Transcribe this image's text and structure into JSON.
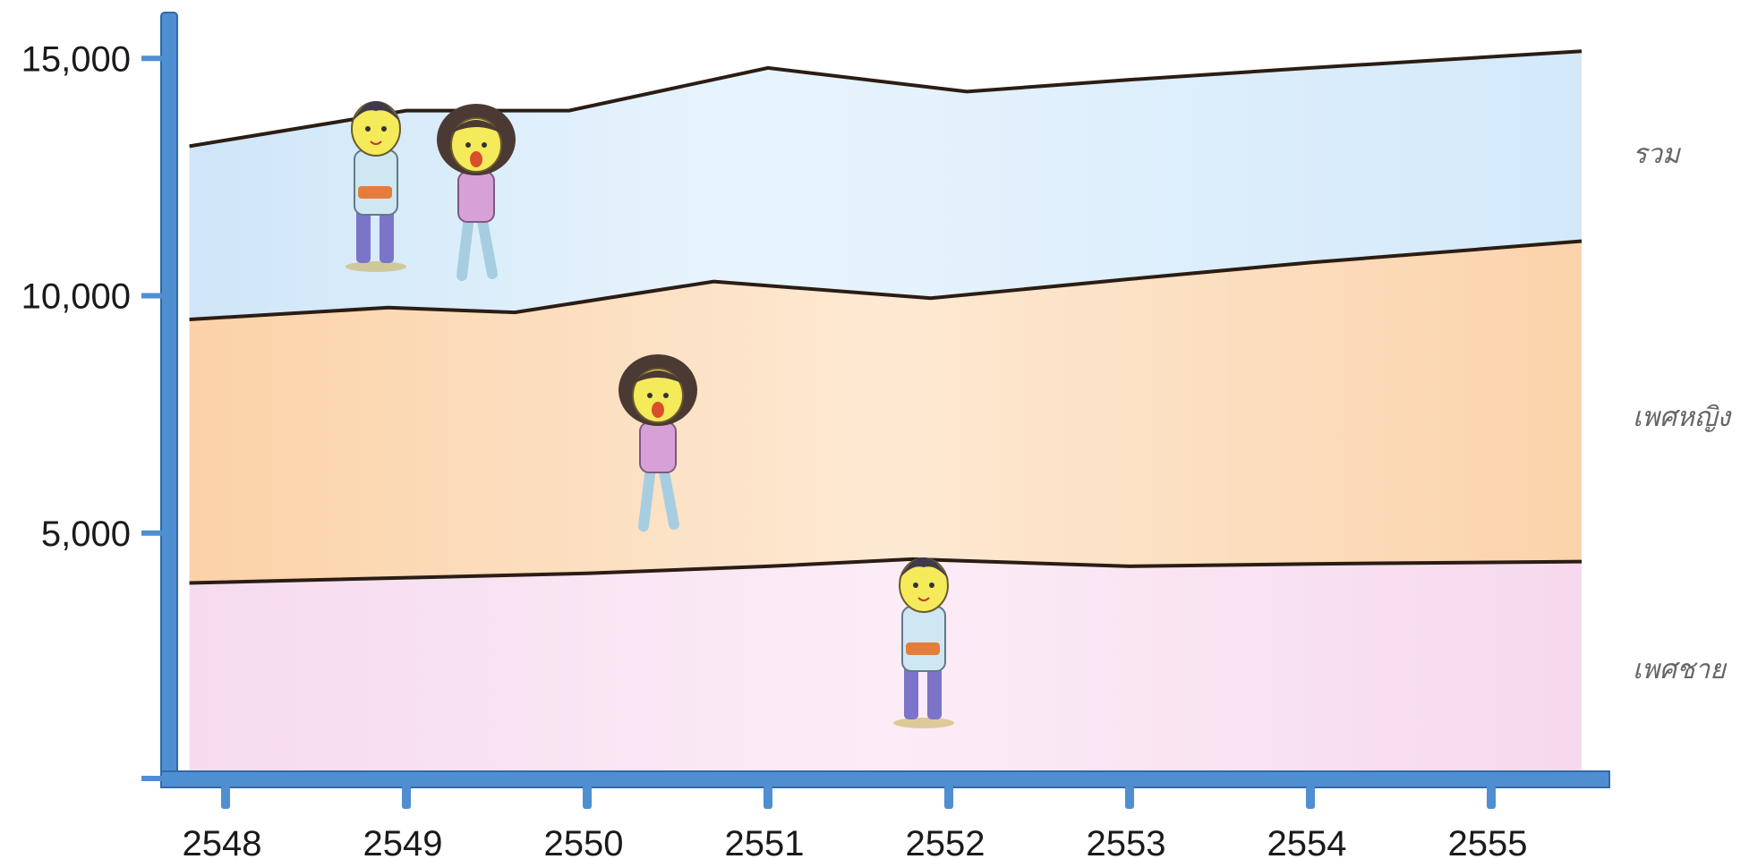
{
  "chart_data": {
    "type": "area",
    "categories": [
      "2548",
      "2549",
      "2550",
      "2551",
      "2552",
      "2553",
      "2554",
      "2555"
    ],
    "ylim": [
      0,
      16000
    ],
    "y_ticks": [
      {
        "value": 5000,
        "label": "5,000"
      },
      {
        "value": 10000,
        "label": "10,000"
      },
      {
        "value": 15000,
        "label": "15,000"
      }
    ],
    "band_boundaries": {
      "male": [
        {
          "x": 2547.8,
          "y": 3950
        },
        {
          "x": 2550.0,
          "y": 4150
        },
        {
          "x": 2551.0,
          "y": 4300
        },
        {
          "x": 2551.8,
          "y": 4450
        },
        {
          "x": 2553.0,
          "y": 4300
        },
        {
          "x": 2554.0,
          "y": 4350
        },
        {
          "x": 2555.5,
          "y": 4400
        }
      ],
      "total_mid": [
        {
          "x": 2547.8,
          "y": 9500
        },
        {
          "x": 2548.9,
          "y": 9750
        },
        {
          "x": 2549.6,
          "y": 9650
        },
        {
          "x": 2550.7,
          "y": 10300
        },
        {
          "x": 2551.9,
          "y": 9950
        },
        {
          "x": 2553.0,
          "y": 10350
        },
        {
          "x": 2554.0,
          "y": 10700
        },
        {
          "x": 2555.5,
          "y": 11150
        }
      ],
      "top": [
        {
          "x": 2547.8,
          "y": 13150
        },
        {
          "x": 2549.0,
          "y": 13900
        },
        {
          "x": 2549.9,
          "y": 13900
        },
        {
          "x": 2551.0,
          "y": 14800
        },
        {
          "x": 2552.1,
          "y": 14300
        },
        {
          "x": 2553.0,
          "y": 14550
        },
        {
          "x": 2554.0,
          "y": 14800
        },
        {
          "x": 2555.5,
          "y": 15150
        }
      ]
    },
    "bands": [
      {
        "name": "รวม",
        "color": "#d8ecfb"
      },
      {
        "name": "เพศหญิง",
        "color": "#fbd9b5"
      },
      {
        "name": "เพศชาย",
        "color": "#f9e0f0"
      }
    ],
    "axis_color": "#4f8fd1",
    "line_color": "#2b1d14"
  }
}
